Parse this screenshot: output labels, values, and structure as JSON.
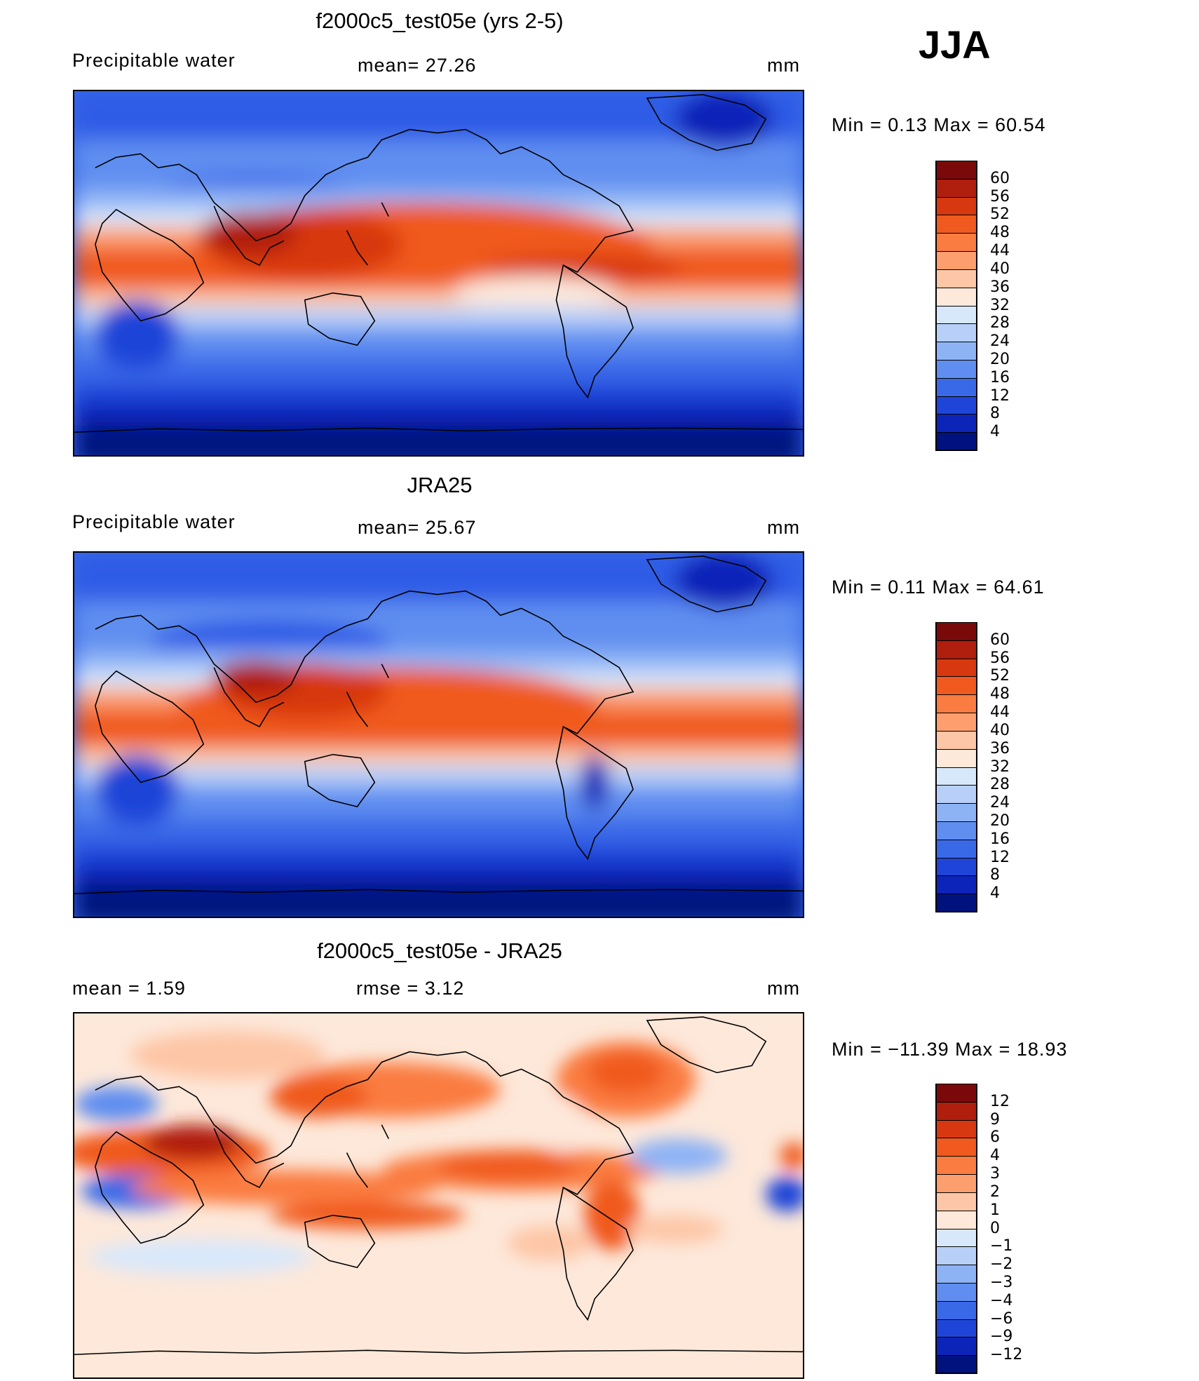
{
  "season": "JJA",
  "panels": [
    {
      "title": "f2000c5_test05e (yrs 2-5)",
      "left_label": "Precipitable  water",
      "center_label": "mean=   27.26",
      "units": "mm",
      "stats": "Min  =     0.13  Max  =    60.54"
    },
    {
      "title": "JRA25",
      "left_label": "Precipitable  water",
      "center_label": "mean=   25.67",
      "units": "mm",
      "stats": "Min  =     0.11  Max  =    64.61"
    },
    {
      "title": "f2000c5_test05e - JRA25",
      "left_label": "mean  =      1.59",
      "center_label": "rmse  =      3.12",
      "units": "mm",
      "stats": "Min  = −11.39  Max  =    18.93"
    }
  ],
  "chart_data": [
    {
      "type": "heatmap",
      "title": "f2000c5_test05e (yrs 2-5)",
      "variable": "Precipitable water",
      "units": "mm",
      "mean": 27.26,
      "min": 0.13,
      "max": 60.54,
      "colorbar_levels": [
        60,
        56,
        52,
        48,
        44,
        40,
        36,
        32,
        28,
        24,
        20,
        16,
        12,
        8,
        4
      ],
      "colorbar_colors": [
        "#7a0a0a",
        "#b01e0e",
        "#d8380f",
        "#f05a1e",
        "#fa7c40",
        "#fc9e6e",
        "#fdc6a6",
        "#fde8da",
        "#d8e8fb",
        "#b8d0f8",
        "#8eb3f5",
        "#5f8ef0",
        "#3a69e8",
        "#1f45d8",
        "#0d24b8",
        "#00127e"
      ]
    },
    {
      "type": "heatmap",
      "title": "JRA25",
      "variable": "Precipitable water",
      "units": "mm",
      "mean": 25.67,
      "min": 0.11,
      "max": 64.61,
      "colorbar_levels": [
        60,
        56,
        52,
        48,
        44,
        40,
        36,
        32,
        28,
        24,
        20,
        16,
        12,
        8,
        4
      ],
      "colorbar_colors": [
        "#7a0a0a",
        "#b01e0e",
        "#d8380f",
        "#f05a1e",
        "#fa7c40",
        "#fc9e6e",
        "#fdc6a6",
        "#fde8da",
        "#d8e8fb",
        "#b8d0f8",
        "#8eb3f5",
        "#5f8ef0",
        "#3a69e8",
        "#1f45d8",
        "#0d24b8",
        "#00127e"
      ]
    },
    {
      "type": "heatmap",
      "title": "f2000c5_test05e - JRA25",
      "units": "mm",
      "mean": 1.59,
      "rmse": 3.12,
      "min": -11.39,
      "max": 18.93,
      "colorbar_levels": [
        "12",
        "9",
        "6",
        "4",
        "3",
        "2",
        "1",
        "0",
        "−1",
        "−2",
        "−3",
        "−4",
        "−6",
        "−9",
        "−12"
      ],
      "colorbar_colors": [
        "#7a0a0a",
        "#b01e0e",
        "#d8380f",
        "#f05a1e",
        "#fa7c40",
        "#fc9e6e",
        "#fdc6a6",
        "#fde8da",
        "#d8e8fb",
        "#b8d0f8",
        "#8eb3f5",
        "#5f8ef0",
        "#3a69e8",
        "#1f45d8",
        "#0d24b8",
        "#00127e"
      ]
    }
  ]
}
